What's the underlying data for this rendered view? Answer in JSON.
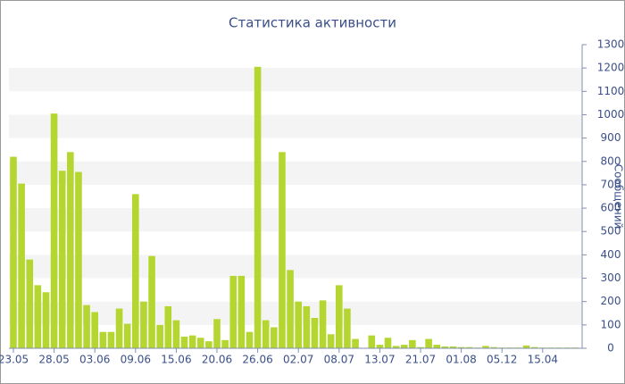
{
  "chart_data": {
    "type": "bar",
    "title": "Статистика активности",
    "y_label": "Сообщений",
    "categories": [
      "23.05",
      null,
      null,
      null,
      null,
      "28.05",
      null,
      null,
      null,
      null,
      "03.06",
      null,
      null,
      null,
      null,
      "09.06",
      null,
      null,
      null,
      null,
      "15.06",
      null,
      null,
      null,
      null,
      "20.06",
      null,
      null,
      null,
      null,
      "26.06",
      null,
      null,
      null,
      null,
      "02.07",
      null,
      null,
      null,
      null,
      "08.07",
      null,
      null,
      null,
      null,
      "13.07",
      null,
      null,
      null,
      null,
      "21.07",
      null,
      null,
      null,
      null,
      "01.08",
      null,
      null,
      null,
      null,
      "05.12",
      null,
      null,
      null,
      null,
      "15.04",
      null,
      null,
      null,
      null
    ],
    "values": [
      820,
      705,
      380,
      270,
      240,
      1005,
      760,
      840,
      755,
      185,
      155,
      70,
      70,
      170,
      105,
      660,
      200,
      395,
      100,
      180,
      120,
      50,
      55,
      45,
      30,
      125,
      35,
      310,
      310,
      70,
      1205,
      120,
      90,
      840,
      335,
      200,
      180,
      130,
      205,
      60,
      270,
      170,
      40,
      2,
      55,
      15,
      45,
      10,
      15,
      35,
      5,
      40,
      15,
      8,
      8,
      5,
      5,
      3,
      10,
      5,
      3,
      3,
      3,
      12,
      5,
      3,
      3,
      3,
      3,
      3
    ],
    "color": "#b5d630",
    "ylim": [
      0,
      1300
    ],
    "yticks": [
      0,
      100,
      200,
      300,
      400,
      500,
      600,
      700,
      800,
      900,
      1000,
      1100,
      1200,
      1300
    ],
    "grid": true
  }
}
